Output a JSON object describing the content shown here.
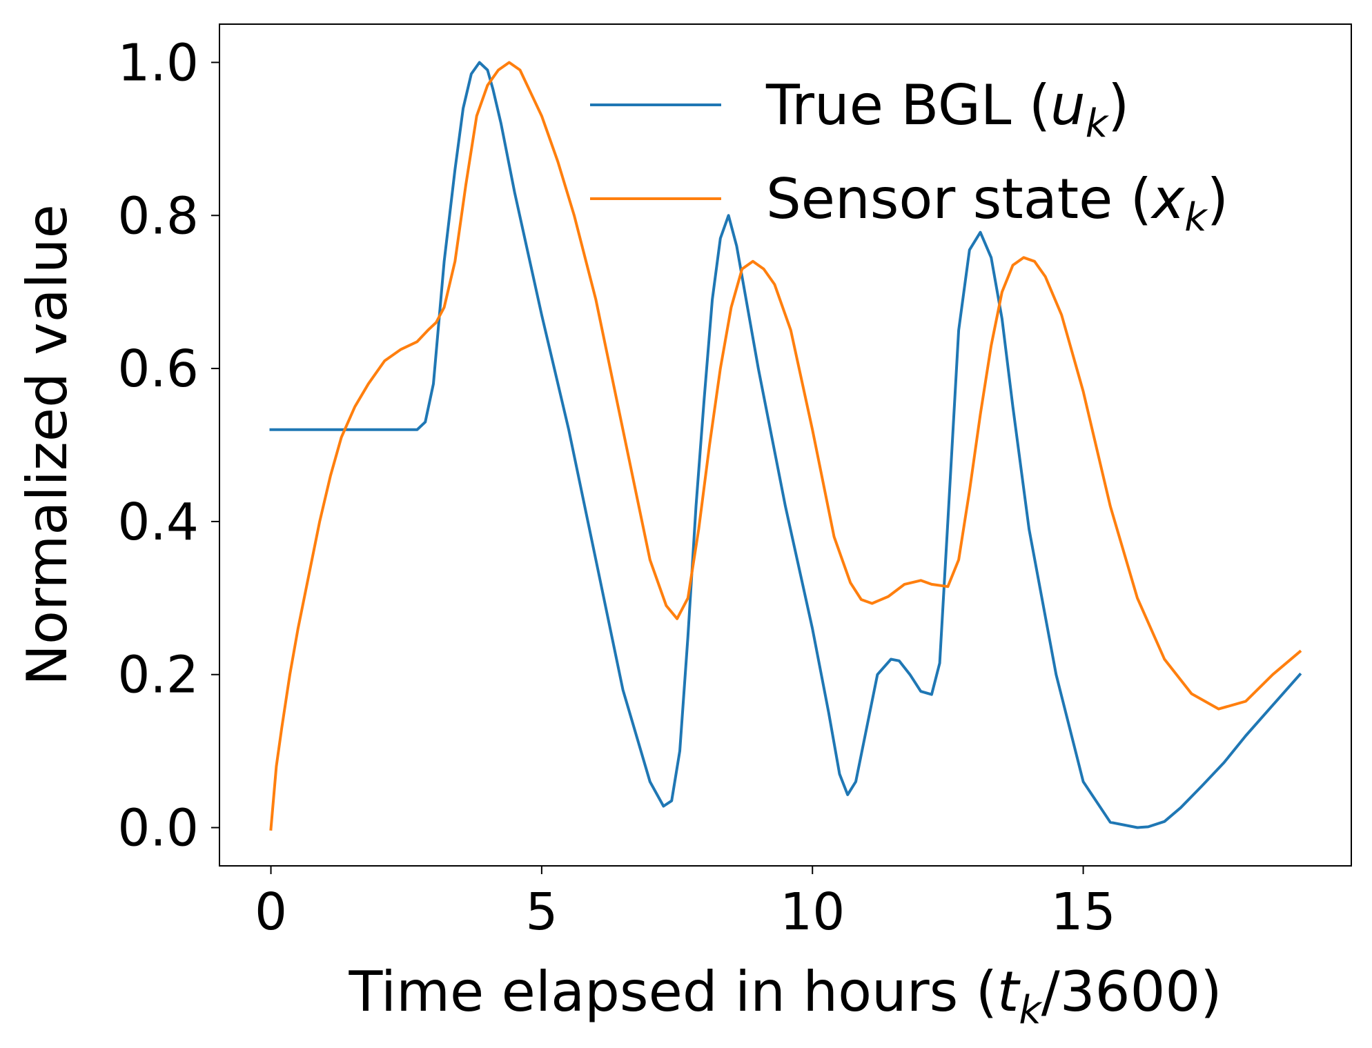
{
  "chart_data": {
    "type": "line",
    "xlabel": "Time elapsed in hours (t_k/3600)",
    "ylabel": "Normalized value",
    "xlim": [
      -0.95,
      19.95
    ],
    "ylim": [
      -0.05,
      1.05
    ],
    "x_ticks": [
      0,
      5,
      10,
      15
    ],
    "x_tick_labels": [
      "0",
      "5",
      "10",
      "15"
    ],
    "y_ticks": [
      0.0,
      0.2,
      0.4,
      0.6,
      0.8,
      1.0
    ],
    "y_tick_labels": [
      "0.0",
      "0.2",
      "0.4",
      "0.6",
      "0.8",
      "1.0"
    ],
    "grid": false,
    "legend_position": "top-right",
    "series": [
      {
        "name": "True BGL (u_k)",
        "color": "#1f77b4",
        "x": [
          0,
          0.5,
          1,
          1.5,
          2,
          2.5,
          2.7,
          2.85,
          3.0,
          3.2,
          3.4,
          3.55,
          3.7,
          3.85,
          4.0,
          4.1,
          4.25,
          4.5,
          5.0,
          5.5,
          6.0,
          6.5,
          7.0,
          7.25,
          7.4,
          7.55,
          7.7,
          7.85,
          8.0,
          8.15,
          8.3,
          8.45,
          8.6,
          9.0,
          9.5,
          10.0,
          10.3,
          10.5,
          10.65,
          10.8,
          11.0,
          11.2,
          11.45,
          11.6,
          11.8,
          12.0,
          12.2,
          12.35,
          12.5,
          12.7,
          12.9,
          13.1,
          13.3,
          13.5,
          13.7,
          14.0,
          14.5,
          15.0,
          15.5,
          16.0,
          16.2,
          16.5,
          16.8,
          17.2,
          17.6,
          18.0,
          18.5,
          19.0
        ],
        "y": [
          0.52,
          0.52,
          0.52,
          0.52,
          0.52,
          0.52,
          0.52,
          0.53,
          0.58,
          0.74,
          0.86,
          0.94,
          0.985,
          1.0,
          0.99,
          0.965,
          0.92,
          0.83,
          0.67,
          0.52,
          0.35,
          0.18,
          0.06,
          0.028,
          0.035,
          0.1,
          0.25,
          0.42,
          0.56,
          0.69,
          0.77,
          0.8,
          0.76,
          0.6,
          0.42,
          0.26,
          0.15,
          0.07,
          0.043,
          0.06,
          0.13,
          0.2,
          0.22,
          0.218,
          0.2,
          0.178,
          0.174,
          0.215,
          0.4,
          0.65,
          0.755,
          0.778,
          0.745,
          0.665,
          0.55,
          0.39,
          0.2,
          0.06,
          0.007,
          0.0,
          0.001,
          0.008,
          0.026,
          0.055,
          0.085,
          0.12,
          0.16,
          0.2
        ]
      },
      {
        "name": "Sensor state (x_k)",
        "color": "#ff7f0e",
        "x": [
          0,
          0.1,
          0.2,
          0.35,
          0.5,
          0.7,
          0.9,
          1.1,
          1.3,
          1.55,
          1.8,
          2.1,
          2.4,
          2.7,
          2.9,
          3.05,
          3.2,
          3.4,
          3.6,
          3.8,
          4.0,
          4.2,
          4.4,
          4.6,
          4.8,
          5.0,
          5.3,
          5.6,
          6.0,
          6.5,
          7.0,
          7.3,
          7.5,
          7.7,
          7.9,
          8.1,
          8.3,
          8.5,
          8.7,
          8.9,
          9.1,
          9.3,
          9.6,
          10.0,
          10.4,
          10.7,
          10.9,
          11.1,
          11.4,
          11.7,
          12.0,
          12.2,
          12.5,
          12.7,
          12.9,
          13.1,
          13.3,
          13.5,
          13.7,
          13.9,
          14.1,
          14.3,
          14.6,
          15.0,
          15.5,
          16.0,
          16.5,
          17.0,
          17.5,
          18.0,
          18.5,
          19.0
        ],
        "y": [
          -0.002,
          0.08,
          0.13,
          0.2,
          0.26,
          0.33,
          0.4,
          0.46,
          0.51,
          0.55,
          0.58,
          0.61,
          0.625,
          0.635,
          0.65,
          0.66,
          0.68,
          0.74,
          0.84,
          0.93,
          0.97,
          0.99,
          1.0,
          0.99,
          0.96,
          0.93,
          0.87,
          0.8,
          0.69,
          0.52,
          0.35,
          0.29,
          0.273,
          0.3,
          0.39,
          0.5,
          0.6,
          0.68,
          0.73,
          0.74,
          0.73,
          0.71,
          0.65,
          0.52,
          0.38,
          0.32,
          0.298,
          0.293,
          0.302,
          0.318,
          0.323,
          0.318,
          0.315,
          0.35,
          0.44,
          0.54,
          0.63,
          0.7,
          0.735,
          0.745,
          0.74,
          0.72,
          0.67,
          0.57,
          0.42,
          0.3,
          0.22,
          0.175,
          0.155,
          0.165,
          0.2,
          0.23
        ]
      }
    ]
  }
}
